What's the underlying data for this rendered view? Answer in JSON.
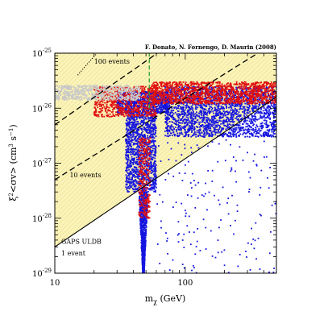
{
  "credit": "F. Donato, N. Fornengo, D. Maurin (2008)",
  "chart_data": {
    "type": "scatter",
    "title": "",
    "xlabel": "m_χ (GeV)",
    "ylabel": "ξ²<σv> (cm³ s⁻¹)",
    "xscale": "log",
    "yscale": "log",
    "xlim": [
      10,
      500
    ],
    "ylim": [
      1e-29,
      1e-25
    ],
    "x_ticks": [
      {
        "value": 10,
        "label": "10"
      },
      {
        "value": 100,
        "label": "100"
      }
    ],
    "y_ticks": [
      {
        "value": 1e-29,
        "base": "10",
        "exp": "-29"
      },
      {
        "value": 1e-28,
        "base": "10",
        "exp": "-28"
      },
      {
        "value": 1e-27,
        "base": "10",
        "exp": "-27"
      },
      {
        "value": 1e-26,
        "base": "10",
        "exp": "-26"
      },
      {
        "value": 1e-25,
        "base": "10",
        "exp": "-25"
      }
    ],
    "colors": {
      "excluded_region": "#fbf4b8",
      "hatch": "#e8d98a",
      "blue_points": "#1515e0",
      "red_points": "#e01010",
      "gray_points": "#c8c8c8",
      "green_line": "#2aa02a"
    },
    "lines": [
      {
        "label": "GAPS ULDB 1 event",
        "style": "solid",
        "points": [
          [
            10,
            3e-29
          ],
          [
            500,
            1.6e-26
          ]
        ]
      },
      {
        "label": "10 events",
        "style": "dashed",
        "points": [
          [
            10,
            5e-28
          ],
          [
            360,
            1e-25
          ]
        ]
      },
      {
        "label": "100 events",
        "style": "dashed",
        "points": [
          [
            10,
            5e-27
          ],
          [
            61,
            1e-25
          ]
        ]
      },
      {
        "label": "",
        "style": "dotted",
        "points": [
          [
            15,
            4e-26
          ],
          [
            21,
            1e-25
          ]
        ]
      }
    ],
    "vertical_marker": {
      "x": 53,
      "style": "dashed",
      "color": "green",
      "y_range": [
        1e-26,
        1e-25
      ]
    },
    "annotations": [
      {
        "text": "100 events",
        "x": 20,
        "y": 6.5e-26
      },
      {
        "text": "10 events",
        "x": 13,
        "y": 5.5e-28
      },
      {
        "text": "GAPS ULDB",
        "x": 11.2,
        "y": 3.4e-29
      },
      {
        "text": "1 event",
        "x": 11.2,
        "y": 2.1e-29
      }
    ],
    "series": [
      {
        "color": "blue",
        "clouds": [
          {
            "x_range": [
              44,
              52
            ],
            "y_range": [
              1e-29,
              3e-28
            ],
            "points": 900,
            "shape": "funnel"
          },
          {
            "x_range": [
              35,
              60
            ],
            "y_range": [
              3e-28,
              8e-27
            ],
            "points": 1200
          },
          {
            "x_range": [
              30,
              75
            ],
            "y_range": [
              8e-27,
              2e-26
            ],
            "points": 900
          },
          {
            "x_range": [
              70,
              500
            ],
            "y_range": [
              3e-27,
              2.5e-26
            ],
            "points": 2200
          },
          {
            "x_range": [
              60,
              500
            ],
            "y_range": [
              1e-29,
              3e-27
            ],
            "points": 170
          }
        ]
      },
      {
        "color": "red",
        "clouds": [
          {
            "x_range": [
              44,
              54
            ],
            "y_range": [
              1e-28,
              3e-27
            ],
            "points": 280
          },
          {
            "x_range": [
              20,
              60
            ],
            "y_range": [
              7e-27,
              2.5e-26
            ],
            "points": 700
          },
          {
            "x_range": [
              55,
              500
            ],
            "y_range": [
              1.2e-26,
              3e-26
            ],
            "points": 1400
          }
        ]
      },
      {
        "color": "gray",
        "clouds": [
          {
            "x_range": [
              10,
              45
            ],
            "y_range": [
              1.4e-26,
              2.6e-26
            ],
            "points": 600
          }
        ]
      }
    ]
  }
}
